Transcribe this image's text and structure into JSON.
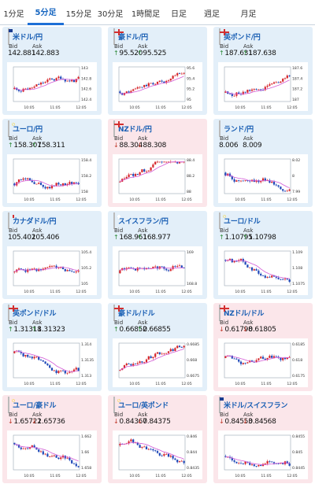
{
  "tabs": [
    {
      "label": "1分足",
      "active": false
    },
    {
      "label": "5分足",
      "active": true
    },
    {
      "label": "15分足",
      "active": false
    },
    {
      "label": "30分足",
      "active": false
    },
    {
      "label": "1時間足",
      "active": false
    },
    {
      "label": "日足",
      "active": false
    },
    {
      "label": "週足",
      "active": false
    },
    {
      "label": "月足",
      "active": false
    }
  ],
  "labels": {
    "bid": "Bid",
    "ask": "Ask"
  },
  "colors": {
    "up_card": "#e3eff9",
    "down_card": "#fbe6ea",
    "candle_up": "#d6262b",
    "candle_down": "#1f48b8",
    "ma_line": "#d35ad6",
    "up_arrow": "#2e8b3a",
    "down_arrow": "#c0392b"
  },
  "cards": [
    {
      "pair": "米ドル/円",
      "flag": "us-jp",
      "trend": "none",
      "bid": "142.881",
      "ask": "142.883",
      "times": [
        "10:05",
        "11:05",
        "12:05"
      ],
      "yticks": [
        "143",
        "142.8",
        "142.6",
        "142.4"
      ]
    },
    {
      "pair": "豪ドル/円",
      "flag": "au-jp",
      "trend": "up",
      "bid": "95.520",
      "ask": "95.525",
      "times": [
        "10:05",
        "11:05",
        "12:05"
      ],
      "yticks": [
        "95.6",
        "95.4",
        "95.2",
        "95"
      ]
    },
    {
      "pair": "英ポンド/円",
      "flag": "gb-jp",
      "trend": "up",
      "bid": "187.631",
      "ask": "187.638",
      "times": [
        "10:05",
        "11:05",
        "12:05"
      ],
      "yticks": [
        "187.6",
        "187.4",
        "187.2",
        "187"
      ]
    },
    {
      "pair": "ユーロ/円",
      "flag": "eu-jp",
      "trend": "up",
      "bid": "158.307",
      "ask": "158.311",
      "times": [
        "10:05",
        "11:05",
        "12:05"
      ],
      "yticks": [
        "158.4",
        "158.2",
        "158"
      ]
    },
    {
      "pair": "NZドル/円",
      "flag": "nz-jp",
      "trend": "down",
      "bid": "88.304",
      "ask": "88.308",
      "times": [
        "10:05",
        "11:05",
        "12:05"
      ],
      "yticks": [
        "88.4",
        "88.2",
        "88"
      ]
    },
    {
      "pair": "ランド/円",
      "flag": "za-jp",
      "trend": "none",
      "bid": "8.006",
      "ask": "8.009",
      "times": [
        "10:05",
        "11:05",
        "12:05"
      ],
      "yticks": [
        "8.02",
        "8",
        "7.99"
      ]
    },
    {
      "pair": "カナダドル/円",
      "flag": "ca-jp",
      "trend": "none",
      "bid": "105.402",
      "ask": "105.406",
      "times": [
        "10:05",
        "11:05",
        "12:05"
      ],
      "yticks": [
        "105.4",
        "105.2",
        "105"
      ]
    },
    {
      "pair": "スイスフラン/円",
      "flag": "ch-jp",
      "trend": "up",
      "bid": "168.961",
      "ask": "168.977",
      "times": [
        "10:05",
        "11:05",
        "12:05"
      ],
      "yticks": [
        "169",
        "168.8"
      ]
    },
    {
      "pair": "ユーロ/ドル",
      "flag": "eu-us",
      "trend": "up",
      "bid": "1.10795",
      "ask": "1.10798",
      "times": [
        "10:05",
        "11:05",
        "12:05"
      ],
      "yticks": [
        "1.109",
        "1.108",
        "1.1075"
      ]
    },
    {
      "pair": "英ポンド/ドル",
      "flag": "gb-us",
      "trend": "up",
      "bid": "1.31318",
      "ask": "1.31323",
      "times": [
        "10:05",
        "11:05",
        "12:05"
      ],
      "yticks": [
        "1.314",
        "1.3135",
        "1.313"
      ]
    },
    {
      "pair": "豪ドル/ドル",
      "flag": "au-us",
      "trend": "up",
      "bid": "0.66852",
      "ask": "0.66855",
      "times": [
        "10:05",
        "11:05",
        "12:05"
      ],
      "yticks": [
        "0.6685",
        "0.668",
        "0.6675"
      ]
    },
    {
      "pair": "NZドル/ドル",
      "flag": "nz-us",
      "trend": "down",
      "bid": "0.61798",
      "ask": "0.61805",
      "times": [
        "10:05",
        "11:05",
        "12:05"
      ],
      "yticks": [
        "0.6185",
        "0.618",
        "0.6175"
      ]
    },
    {
      "pair": "ユーロ/豪ドル",
      "flag": "eu-au",
      "trend": "down",
      "bid": "1.65722",
      "ask": "1.65736",
      "times": [
        "10:05",
        "11:05",
        "12:05"
      ],
      "yticks": [
        "1.662",
        "1.66",
        "1.658"
      ]
    },
    {
      "pair": "ユーロ/英ポンド",
      "flag": "eu-gb",
      "trend": "down",
      "bid": "0.84367",
      "ask": "0.84375",
      "times": [
        "10:05",
        "11:05",
        "12:05"
      ],
      "yticks": [
        "0.846",
        "0.844",
        "0.8435"
      ]
    },
    {
      "pair": "米ドル/スイスフラン",
      "flag": "us-ch",
      "trend": "down",
      "bid": "0.84553",
      "ask": "0.84568",
      "times": [
        "10:05",
        "11:05",
        "12:05"
      ],
      "yticks": [
        "0.8455",
        "0.845",
        "0.8445"
      ]
    }
  ]
}
